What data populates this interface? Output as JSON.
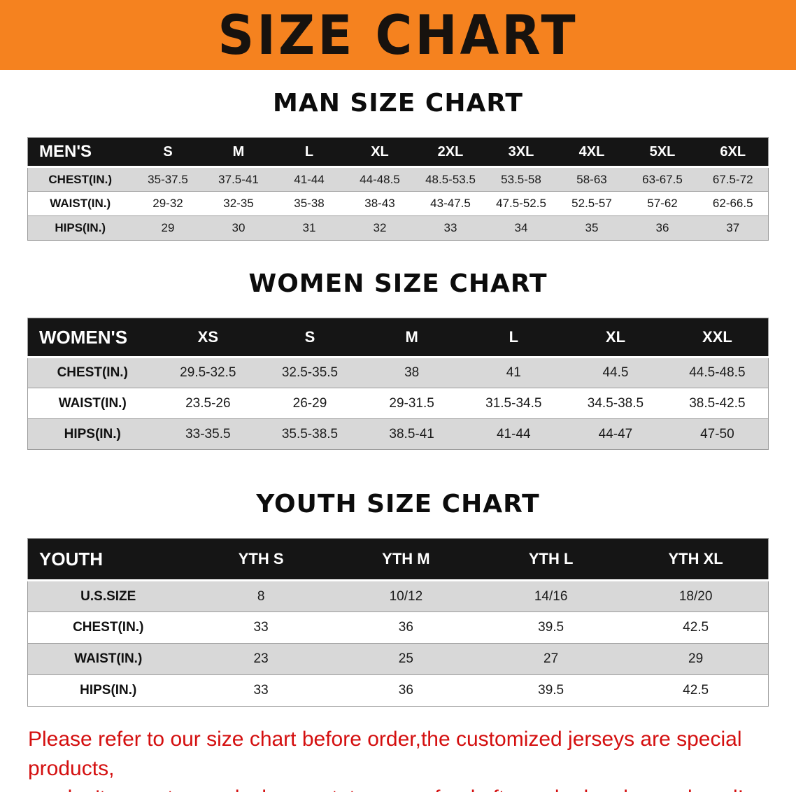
{
  "banner": {
    "title": "SIZE CHART"
  },
  "colors": {
    "banner_bg": "#F5821F",
    "header_bg": "#151515",
    "row_alt": "#D8D8D8",
    "note_red": "#D40F0F"
  },
  "sections": {
    "men": {
      "heading": "MAN SIZE CHART",
      "table": {
        "header": [
          "MEN'S",
          "S",
          "M",
          "L",
          "XL",
          "2XL",
          "3XL",
          "4XL",
          "5XL",
          "6XL"
        ],
        "rows": [
          [
            "CHEST(IN.)",
            "35-37.5",
            "37.5-41",
            "41-44",
            "44-48.5",
            "48.5-53.5",
            "53.5-58",
            "58-63",
            "63-67.5",
            "67.5-72"
          ],
          [
            "WAIST(IN.)",
            "29-32",
            "32-35",
            "35-38",
            "38-43",
            "43-47.5",
            "47.5-52.5",
            "52.5-57",
            "57-62",
            "62-66.5"
          ],
          [
            "HIPS(IN.)",
            "29",
            "30",
            "31",
            "32",
            "33",
            "34",
            "35",
            "36",
            "37"
          ]
        ]
      }
    },
    "women": {
      "heading": "WOMEN SIZE CHART",
      "table": {
        "header": [
          "WOMEN'S",
          "XS",
          "S",
          "M",
          "L",
          "XL",
          "XXL"
        ],
        "rows": [
          [
            "CHEST(IN.)",
            "29.5-32.5",
            "32.5-35.5",
            "38",
            "41",
            "44.5",
            "44.5-48.5"
          ],
          [
            "WAIST(IN.)",
            "23.5-26",
            "26-29",
            "29-31.5",
            "31.5-34.5",
            "34.5-38.5",
            "38.5-42.5"
          ],
          [
            "HIPS(IN.)",
            "33-35.5",
            "35.5-38.5",
            "38.5-41",
            "41-44",
            "44-47",
            "47-50"
          ]
        ]
      }
    },
    "youth": {
      "heading": "YOUTH SIZE CHART",
      "table": {
        "header": [
          "YOUTH",
          "YTH S",
          "YTH M",
          "YTH L",
          "YTH XL"
        ],
        "rows": [
          [
            "U.S.SIZE",
            "8",
            "10/12",
            "14/16",
            "18/20"
          ],
          [
            "CHEST(IN.)",
            "33",
            "36",
            "39.5",
            "42.5"
          ],
          [
            "WAIST(IN.)",
            "23",
            "25",
            "27",
            "29"
          ],
          [
            "HIPS(IN.)",
            "33",
            "36",
            "39.5",
            "42.5"
          ]
        ]
      }
    }
  },
  "note": {
    "line1": "Please refer to our size chart before order,the customized jerseys are special products,",
    "line2": "we don't accept cancel, change, teturn or refund after order has been placed!"
  }
}
